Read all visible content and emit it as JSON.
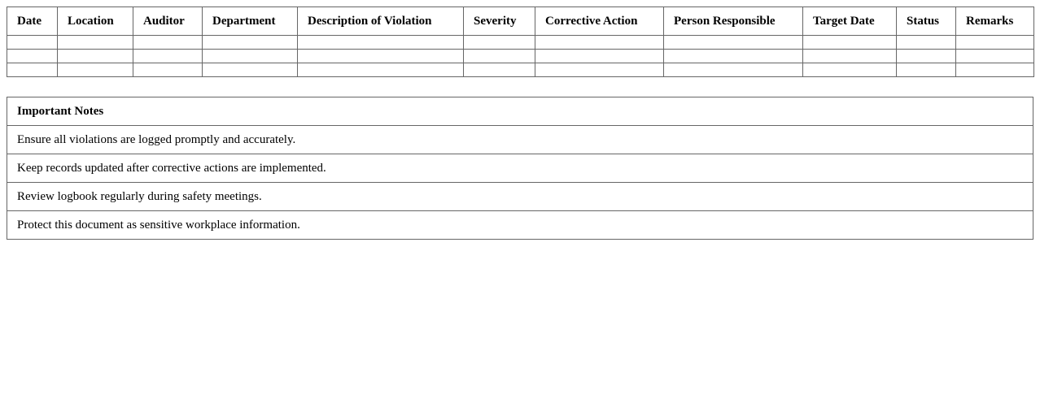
{
  "log_table": {
    "columns": [
      "Date",
      "Location",
      "Auditor",
      "Department",
      "Description of Violation",
      "Severity",
      "Corrective Action",
      "Person Responsible",
      "Target Date",
      "Status",
      "Remarks"
    ],
    "rows": [
      [
        "",
        "",
        "",
        "",
        "",
        "",
        "",
        "",
        "",
        "",
        ""
      ],
      [
        "",
        "",
        "",
        "",
        "",
        "",
        "",
        "",
        "",
        "",
        ""
      ],
      [
        "",
        "",
        "",
        "",
        "",
        "",
        "",
        "",
        "",
        "",
        ""
      ]
    ]
  },
  "notes": {
    "title": "Important Notes",
    "items": [
      "Ensure all violations are logged promptly and accurately.",
      "Keep records updated after corrective actions are implemented.",
      "Review logbook regularly during safety meetings.",
      "Protect this document as sensitive workplace information."
    ]
  }
}
